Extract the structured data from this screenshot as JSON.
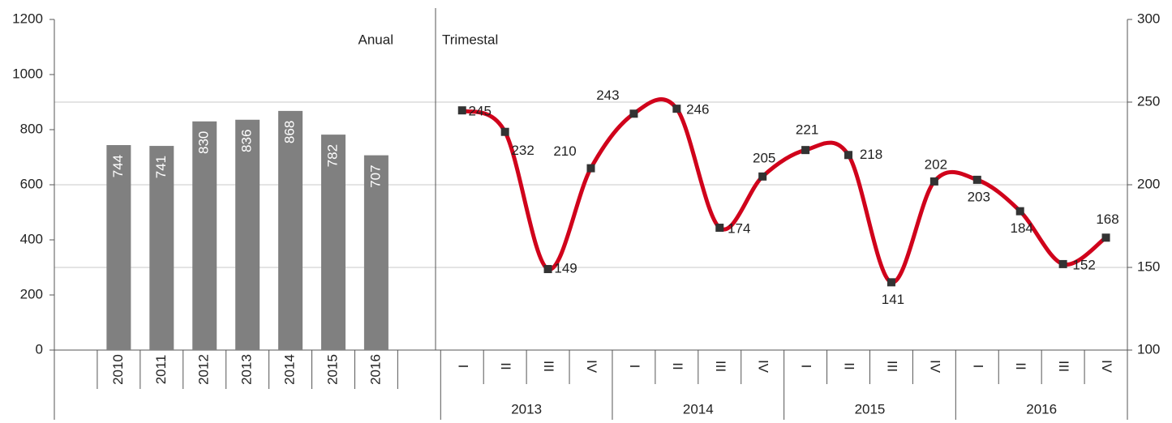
{
  "chart_data": [
    {
      "type": "bar",
      "annotation": "Anual",
      "categories": [
        null,
        "2010",
        "2011",
        "2012",
        "2013",
        "2014",
        "2015",
        "2016",
        null
      ],
      "values": [
        null,
        744,
        741,
        830,
        836,
        868,
        782,
        707,
        null
      ],
      "color": "#808080",
      "ylim": [
        0,
        1200
      ],
      "yticks": [
        0,
        200,
        400,
        600,
        800,
        1000,
        1200
      ]
    },
    {
      "type": "line",
      "annotation": "Trimestal",
      "categories": [
        "I",
        "II",
        "III",
        "IV",
        "I",
        "II",
        "III",
        "IV",
        "I",
        "II",
        "III",
        "IV",
        "I",
        "II",
        "III",
        "IV"
      ],
      "groups": [
        "2013",
        "2014",
        "2015",
        "2016"
      ],
      "series": [
        {
          "color": "#d0021b",
          "marker_color": "#333333",
          "axis": "y2",
          "values": [
            245,
            232,
            149,
            210,
            243,
            246,
            174,
            205,
            221,
            218,
            141,
            202,
            203,
            184,
            152,
            168
          ]
        }
      ],
      "y2lim": [
        100,
        300
      ],
      "y2ticks": [
        100,
        150,
        200,
        250,
        300
      ],
      "grid": true
    }
  ]
}
